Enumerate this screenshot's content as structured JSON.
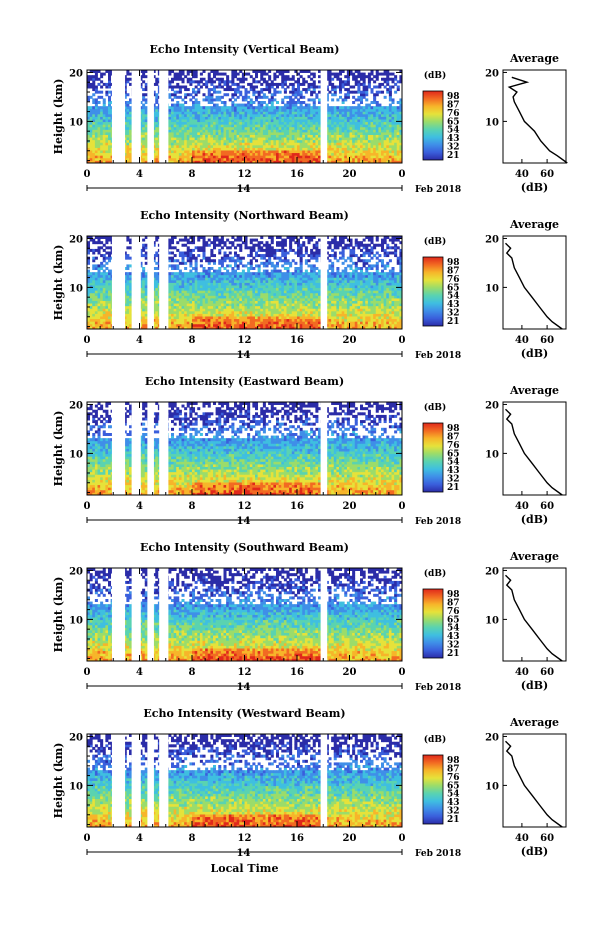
{
  "figure": {
    "xlabel": "Local Time",
    "date_label": "Feb 2018",
    "day_label": "14",
    "time_ticks": [
      "0",
      "4",
      "8",
      "12",
      "16",
      "20",
      "0"
    ],
    "height_label": "Height (km)",
    "height_ticks": [
      "10",
      "20"
    ],
    "average_title": "Average",
    "average_xlabel": "(dB)",
    "average_ticks": [
      "40",
      "60"
    ],
    "colorbar_unit": "(dB)",
    "colors": {
      "colormap": [
        "#2b2ca8",
        "#3a5fdc",
        "#3f8fe8",
        "#3fbfe0",
        "#5ad3b0",
        "#9bdc6a",
        "#e6e23a",
        "#f7b52a",
        "#f26a22",
        "#e0281b"
      ],
      "gap": "#ffffff",
      "line": "#000000"
    }
  },
  "chart_data": [
    {
      "type": "heatmap",
      "title": "Echo Intensity (Vertical Beam)",
      "colorbar_ticks": [
        "98",
        "87",
        "76",
        "65",
        "54",
        "43",
        "32",
        "21"
      ],
      "xlim_hours": [
        0,
        24
      ],
      "ylim_km": [
        1.5,
        20.5
      ],
      "data_gaps_hours": [
        [
          1.9,
          2.9
        ],
        [
          3.4,
          4.1
        ],
        [
          4.6,
          5.1
        ],
        [
          5.5,
          6.2
        ],
        [
          17.8,
          18.3
        ]
      ],
      "average_profile": {
        "height_km": [
          1.5,
          3,
          4,
          6,
          8,
          10,
          12,
          14,
          15,
          16,
          17,
          18,
          19
        ],
        "intensity_db": [
          76,
          68,
          62,
          55,
          50,
          42,
          38,
          34,
          33,
          36,
          30,
          44,
          32
        ],
        "xlim_db": [
          25,
          75
        ]
      }
    },
    {
      "type": "heatmap",
      "title": "Echo Intensity (Northward Beam)",
      "colorbar_ticks": [
        "98",
        "87",
        "76",
        "65",
        "54",
        "43",
        "32",
        "21"
      ],
      "xlim_hours": [
        0,
        24
      ],
      "ylim_km": [
        1.5,
        20.5
      ],
      "data_gaps_hours": [
        [
          1.9,
          2.9
        ],
        [
          3.4,
          4.1
        ],
        [
          4.6,
          5.1
        ],
        [
          5.5,
          6.2
        ],
        [
          17.8,
          18.3
        ]
      ],
      "average_profile": {
        "height_km": [
          1.5,
          3,
          4,
          6,
          8,
          10,
          12,
          14,
          16,
          17,
          18,
          19
        ],
        "intensity_db": [
          72,
          64,
          60,
          54,
          48,
          42,
          38,
          34,
          32,
          28,
          31,
          27
        ],
        "xlim_db": [
          25,
          75
        ]
      }
    },
    {
      "type": "heatmap",
      "title": "Echo Intensity (Eastward Beam)",
      "colorbar_ticks": [
        "98",
        "87",
        "76",
        "65",
        "54",
        "43",
        "32",
        "21"
      ],
      "xlim_hours": [
        0,
        24
      ],
      "ylim_km": [
        1.5,
        20.5
      ],
      "data_gaps_hours": [
        [
          1.9,
          2.9
        ],
        [
          3.4,
          4.1
        ],
        [
          4.6,
          5.1
        ],
        [
          5.5,
          6.2
        ],
        [
          17.8,
          18.3
        ]
      ],
      "average_profile": {
        "height_km": [
          1.5,
          3,
          4,
          6,
          8,
          10,
          12,
          14,
          16,
          17,
          18,
          19
        ],
        "intensity_db": [
          72,
          64,
          60,
          54,
          48,
          42,
          38,
          34,
          32,
          28,
          31,
          27
        ],
        "xlim_db": [
          25,
          75
        ]
      }
    },
    {
      "type": "heatmap",
      "title": "Echo Intensity (Southward Beam)",
      "colorbar_ticks": [
        "98",
        "87",
        "76",
        "65",
        "54",
        "43",
        "32",
        "21"
      ],
      "xlim_hours": [
        0,
        24
      ],
      "ylim_km": [
        1.5,
        20.5
      ],
      "data_gaps_hours": [
        [
          1.9,
          2.9
        ],
        [
          3.4,
          4.1
        ],
        [
          4.6,
          5.1
        ],
        [
          5.5,
          6.2
        ],
        [
          17.8,
          18.3
        ]
      ],
      "average_profile": {
        "height_km": [
          1.5,
          3,
          4,
          6,
          8,
          10,
          12,
          14,
          16,
          17,
          18,
          19
        ],
        "intensity_db": [
          72,
          64,
          60,
          54,
          48,
          42,
          38,
          34,
          32,
          28,
          31,
          27
        ],
        "xlim_db": [
          25,
          75
        ]
      }
    },
    {
      "type": "heatmap",
      "title": "Echo Intensity (Westward Beam)",
      "colorbar_ticks": [
        "98",
        "87",
        "76",
        "65",
        "54",
        "43",
        "32",
        "21"
      ],
      "xlim_hours": [
        0,
        24
      ],
      "ylim_km": [
        1.5,
        20.5
      ],
      "data_gaps_hours": [
        [
          1.9,
          2.9
        ],
        [
          3.4,
          4.1
        ],
        [
          4.6,
          5.1
        ],
        [
          5.5,
          6.2
        ],
        [
          17.8,
          18.3
        ]
      ],
      "average_profile": {
        "height_km": [
          1.5,
          3,
          4,
          6,
          8,
          10,
          12,
          14,
          16,
          17,
          18,
          19
        ],
        "intensity_db": [
          72,
          64,
          60,
          54,
          48,
          42,
          38,
          34,
          32,
          28,
          31,
          27
        ],
        "xlim_db": [
          25,
          75
        ]
      }
    }
  ]
}
